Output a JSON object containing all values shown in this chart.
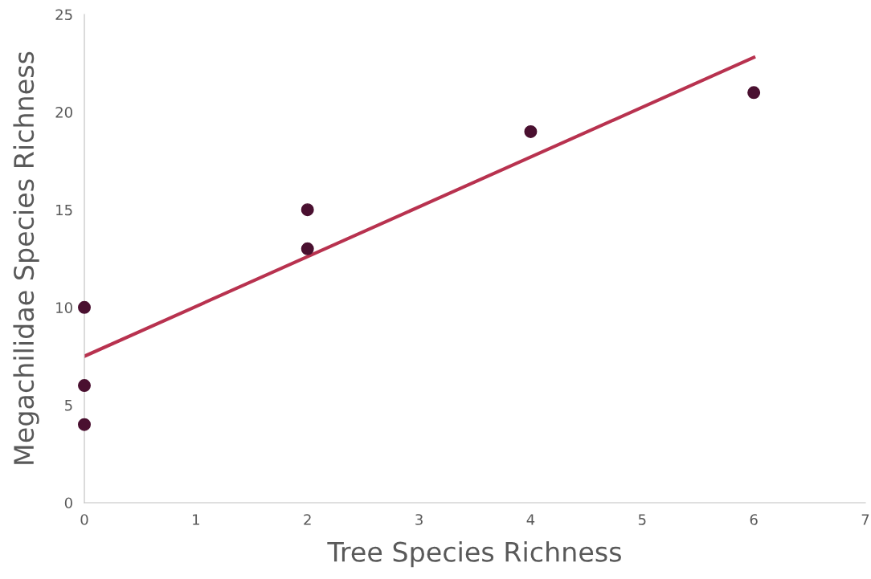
{
  "chart_data": {
    "type": "scatter",
    "xlabel": "Tree Species Richness",
    "ylabel": "Megachilidae Species Richness",
    "xlim": [
      0,
      7
    ],
    "xticks": [
      0,
      1,
      2,
      3,
      4,
      5,
      6,
      7
    ],
    "ylim": [
      0,
      25
    ],
    "yticks": [
      0,
      5,
      10,
      15,
      20,
      25
    ],
    "grid": false,
    "legend": false,
    "series": [
      {
        "marker": "circle",
        "color": "#4a1030",
        "x": [
          0,
          0,
          0,
          2,
          2,
          4,
          6
        ],
        "values": [
          4,
          6,
          10,
          13,
          15,
          19,
          21
        ]
      },
      {
        "type": "line",
        "color": "#b8324f",
        "x": [
          0,
          6
        ],
        "values": [
          7.5,
          22.8
        ],
        "line_style": "solid",
        "marker": "none"
      }
    ]
  }
}
